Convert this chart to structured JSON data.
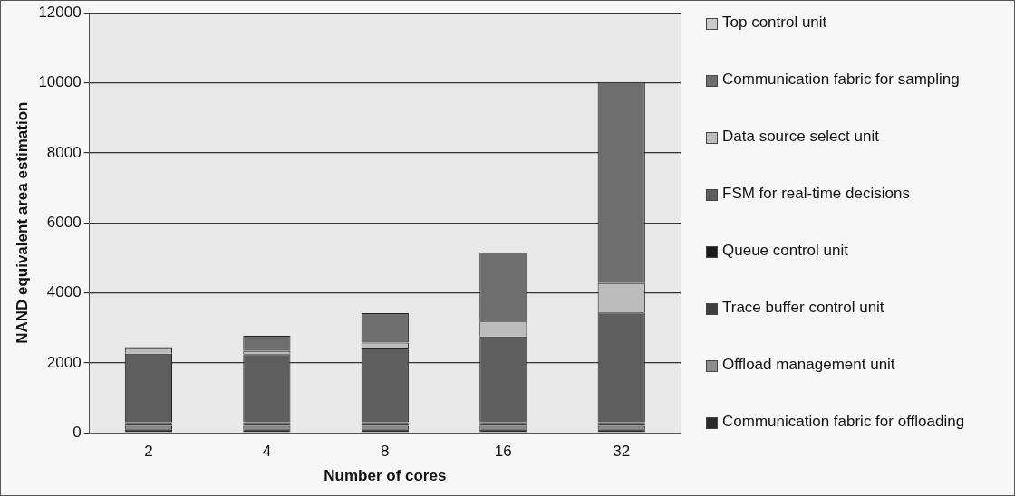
{
  "chart_data": {
    "type": "bar",
    "stacked": true,
    "xlabel": "Number of cores",
    "ylabel": "NAND equivalent area estimation",
    "categories": [
      "2",
      "4",
      "8",
      "16",
      "32"
    ],
    "series": [
      {
        "name": "Communication fabric for offloading",
        "color": "#2a2a2a",
        "values": [
          100,
          100,
          100,
          100,
          100
        ]
      },
      {
        "name": "Offload management unit",
        "color": "#8c8c8c",
        "values": [
          100,
          100,
          100,
          100,
          100
        ]
      },
      {
        "name": "Trace buffer control unit",
        "color": "#404040",
        "values": [
          80,
          80,
          80,
          80,
          80
        ]
      },
      {
        "name": "Queue control unit",
        "color": "#1c1c1c",
        "values": [
          20,
          20,
          20,
          20,
          20
        ]
      },
      {
        "name": "FSM for real-time decisions",
        "color": "#5e5e5e",
        "values": [
          1960,
          1950,
          2110,
          2450,
          3140
        ]
      },
      {
        "name": "Data source select unit",
        "color": "#bcbcbc",
        "values": [
          160,
          90,
          170,
          430,
          840
        ]
      },
      {
        "name": "Communication fabric for sampling",
        "color": "#6e6e6e",
        "values": [
          30,
          430,
          840,
          1970,
          5740
        ]
      },
      {
        "name": "Top control unit",
        "color": "#cacaca",
        "values": [
          null,
          null,
          null,
          null,
          null
        ]
      }
    ],
    "ylim": [
      0,
      12000
    ],
    "yticks": [
      0,
      2000,
      4000,
      6000,
      8000,
      10000,
      12000
    ],
    "grid": "y",
    "legend": "right"
  }
}
